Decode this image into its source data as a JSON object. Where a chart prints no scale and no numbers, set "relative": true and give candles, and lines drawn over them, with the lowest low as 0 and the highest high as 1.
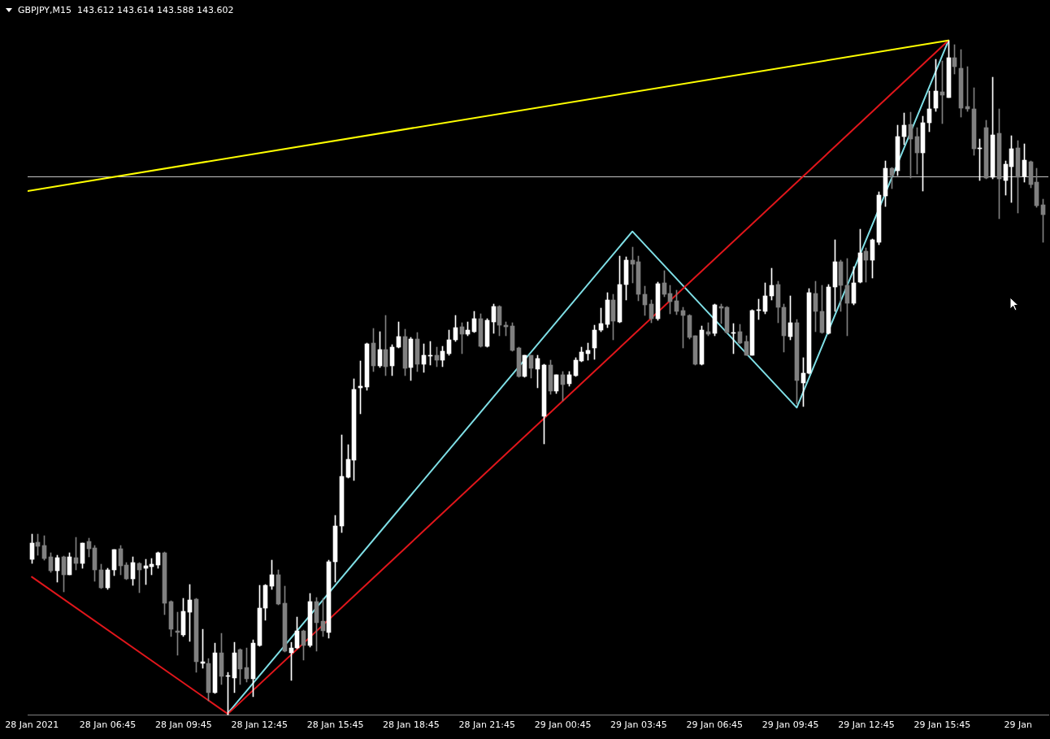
{
  "chart_data": {
    "type": "candlestick",
    "title": "GBPJPY,M15  143.612 143.614 143.588 143.602",
    "relative": true,
    "xlim": [
      "2021-01-28T03:35",
      "2021-01-29T19:57"
    ],
    "xticks": [
      {
        "value": "2021-01-28T03:45",
        "label": "28 Jan 2021"
      },
      {
        "value": "2021-01-28T06:45",
        "label": "28 Jan 06:45"
      },
      {
        "value": "2021-01-28T09:45",
        "label": "28 Jan 09:45"
      },
      {
        "value": "2021-01-28T12:45",
        "label": "28 Jan 12:45"
      },
      {
        "value": "2021-01-28T15:45",
        "label": "28 Jan 15:45"
      },
      {
        "value": "2021-01-28T18:45",
        "label": "28 Jan 18:45"
      },
      {
        "value": "2021-01-28T21:45",
        "label": "28 Jan 21:45"
      },
      {
        "value": "2021-01-29T00:45",
        "label": "29 Jan 00:45"
      },
      {
        "value": "2021-01-29T03:45",
        "label": "29 Jan 03:45"
      },
      {
        "value": "2021-01-29T06:45",
        "label": "29 Jan 06:45"
      },
      {
        "value": "2021-01-29T09:45",
        "label": "29 Jan 09:45"
      },
      {
        "value": "2021-01-29T12:45",
        "label": "29 Jan 12:45"
      },
      {
        "value": "2021-01-29T15:45",
        "label": "29 Jan 15:45"
      },
      {
        "value": "2021-01-29T18:45",
        "label": "29 Jan"
      }
    ],
    "x": [
      "2021-01-28T03:45",
      "2021-01-28T04:00",
      "2021-01-28T04:15",
      "2021-01-28T04:30",
      "2021-01-28T04:45",
      "2021-01-28T05:00",
      "2021-01-28T05:15",
      "2021-01-28T05:30",
      "2021-01-28T05:45",
      "2021-01-28T06:00",
      "2021-01-28T06:15",
      "2021-01-28T06:30",
      "2021-01-28T06:45",
      "2021-01-28T07:00",
      "2021-01-28T07:15",
      "2021-01-28T07:30",
      "2021-01-28T07:45",
      "2021-01-28T08:00",
      "2021-01-28T08:15",
      "2021-01-28T08:30",
      "2021-01-28T08:45",
      "2021-01-28T09:00",
      "2021-01-28T09:15",
      "2021-01-28T09:30",
      "2021-01-28T09:45",
      "2021-01-28T10:00",
      "2021-01-28T10:15",
      "2021-01-28T10:30",
      "2021-01-28T10:45",
      "2021-01-28T11:00",
      "2021-01-28T11:15",
      "2021-01-28T11:30",
      "2021-01-28T11:45",
      "2021-01-28T12:00",
      "2021-01-28T12:15",
      "2021-01-28T12:30",
      "2021-01-28T12:45",
      "2021-01-28T13:00",
      "2021-01-28T13:15",
      "2021-01-28T13:30",
      "2021-01-28T13:45",
      "2021-01-28T14:00",
      "2021-01-28T14:15",
      "2021-01-28T14:30",
      "2021-01-28T14:45",
      "2021-01-28T15:00",
      "2021-01-28T15:15",
      "2021-01-28T15:30",
      "2021-01-28T15:45",
      "2021-01-28T16:00",
      "2021-01-28T16:15",
      "2021-01-28T16:30",
      "2021-01-28T16:45",
      "2021-01-28T17:00",
      "2021-01-28T17:15",
      "2021-01-28T17:30",
      "2021-01-28T17:45",
      "2021-01-28T18:00",
      "2021-01-28T18:15",
      "2021-01-28T18:30",
      "2021-01-28T18:45",
      "2021-01-28T19:00",
      "2021-01-28T19:15",
      "2021-01-28T19:30",
      "2021-01-28T19:45",
      "2021-01-28T20:00",
      "2021-01-28T20:15",
      "2021-01-28T20:30",
      "2021-01-28T20:45",
      "2021-01-28T21:00",
      "2021-01-28T21:15",
      "2021-01-28T21:30",
      "2021-01-28T21:45",
      "2021-01-28T22:00",
      "2021-01-28T22:15",
      "2021-01-28T22:30",
      "2021-01-28T22:45",
      "2021-01-28T23:00",
      "2021-01-28T23:15",
      "2021-01-28T23:30",
      "2021-01-28T23:45",
      "2021-01-29T00:00",
      "2021-01-29T00:15",
      "2021-01-29T00:30",
      "2021-01-29T00:45",
      "2021-01-29T01:00",
      "2021-01-29T01:15",
      "2021-01-29T01:30",
      "2021-01-29T01:45",
      "2021-01-29T02:00",
      "2021-01-29T02:15",
      "2021-01-29T02:30",
      "2021-01-29T02:45",
      "2021-01-29T03:00",
      "2021-01-29T03:15",
      "2021-01-29T03:30",
      "2021-01-29T03:45",
      "2021-01-29T04:00",
      "2021-01-29T04:15",
      "2021-01-29T04:30",
      "2021-01-29T04:45",
      "2021-01-29T05:00",
      "2021-01-29T05:15",
      "2021-01-29T05:30",
      "2021-01-29T05:45",
      "2021-01-29T06:00",
      "2021-01-29T06:15",
      "2021-01-29T06:30",
      "2021-01-29T06:45",
      "2021-01-29T07:00",
      "2021-01-29T07:15",
      "2021-01-29T07:30",
      "2021-01-29T07:45",
      "2021-01-29T08:00",
      "2021-01-29T08:15",
      "2021-01-29T08:30",
      "2021-01-29T08:45",
      "2021-01-29T09:00",
      "2021-01-29T09:15",
      "2021-01-29T09:30",
      "2021-01-29T09:45",
      "2021-01-29T10:00",
      "2021-01-29T10:15",
      "2021-01-29T10:30",
      "2021-01-29T10:45",
      "2021-01-29T11:00",
      "2021-01-29T11:15",
      "2021-01-29T11:30",
      "2021-01-29T11:45",
      "2021-01-29T12:00",
      "2021-01-29T12:15",
      "2021-01-29T12:30",
      "2021-01-29T12:45",
      "2021-01-29T13:00",
      "2021-01-29T13:15",
      "2021-01-29T13:30",
      "2021-01-29T13:45",
      "2021-01-29T14:00",
      "2021-01-29T14:15",
      "2021-01-29T14:30",
      "2021-01-29T14:45",
      "2021-01-29T15:00",
      "2021-01-29T15:15",
      "2021-01-29T15:30",
      "2021-01-29T15:45",
      "2021-01-29T16:00",
      "2021-01-29T16:15",
      "2021-01-29T16:30",
      "2021-01-29T16:45",
      "2021-01-29T17:00",
      "2021-01-29T17:15",
      "2021-01-29T17:30",
      "2021-01-29T17:45",
      "2021-01-29T18:00",
      "2021-01-29T18:15",
      "2021-01-29T18:30",
      "2021-01-29T18:45",
      "2021-01-29T19:00",
      "2021-01-29T19:15",
      "2021-01-29T19:30",
      "2021-01-29T19:45"
    ],
    "ohlc": [
      [
        0.231,
        0.268,
        0.225,
        0.255
      ],
      [
        0.256,
        0.268,
        0.237,
        0.25
      ],
      [
        0.251,
        0.266,
        0.23,
        0.232
      ],
      [
        0.235,
        0.241,
        0.212,
        0.214
      ],
      [
        0.214,
        0.237,
        0.197,
        0.234
      ],
      [
        0.235,
        0.236,
        0.183,
        0.208
      ],
      [
        0.208,
        0.241,
        0.208,
        0.235
      ],
      [
        0.234,
        0.264,
        0.215,
        0.225
      ],
      [
        0.225,
        0.255,
        0.218,
        0.255
      ],
      [
        0.258,
        0.262,
        0.235,
        0.247
      ],
      [
        0.248,
        0.252,
        0.198,
        0.215
      ],
      [
        0.215,
        0.224,
        0.188,
        0.189
      ],
      [
        0.189,
        0.218,
        0.186,
        0.215
      ],
      [
        0.215,
        0.246,
        0.207,
        0.246
      ],
      [
        0.247,
        0.251,
        0.208,
        0.221
      ],
      [
        0.223,
        0.226,
        0.201,
        0.202
      ],
      [
        0.202,
        0.235,
        0.193,
        0.226
      ],
      [
        0.225,
        0.226,
        0.182,
        0.216
      ],
      [
        0.218,
        0.231,
        0.194,
        0.221
      ],
      [
        0.22,
        0.232,
        0.208,
        0.224
      ],
      [
        0.223,
        0.242,
        0.218,
        0.241
      ],
      [
        0.241,
        0.242,
        0.149,
        0.166
      ],
      [
        0.169,
        0.17,
        0.117,
        0.127
      ],
      [
        0.125,
        0.153,
        0.089,
        0.123
      ],
      [
        0.119,
        0.173,
        0.117,
        0.154
      ],
      [
        0.153,
        0.194,
        0.109,
        0.171
      ],
      [
        0.172,
        0.173,
        0.064,
        0.079
      ],
      [
        0.077,
        0.128,
        0.07,
        0.079
      ],
      [
        0.077,
        0.084,
        0.022,
        0.033
      ],
      [
        0.033,
        0.107,
        0.032,
        0.093
      ],
      [
        0.092,
        0.121,
        0.046,
        0.058
      ],
      [
        0.057,
        0.064,
        0,
        0.058
      ],
      [
        0.055,
        0.108,
        0.033,
        0.093
      ],
      [
        0.097,
        0.098,
        0.046,
        0.069
      ],
      [
        0.071,
        0.1,
        0.049,
        0.054
      ],
      [
        0.054,
        0.112,
        0.027,
        0.107
      ],
      [
        0.103,
        0.193,
        0.102,
        0.159
      ],
      [
        0.159,
        0.194,
        0.141,
        0.193
      ],
      [
        0.191,
        0.23,
        0.187,
        0.208
      ],
      [
        0.208,
        0.215,
        0.164,
        0.165
      ],
      [
        0.166,
        0.191,
        0.094,
        0.095
      ],
      [
        0.093,
        0.108,
        0.052,
        0.1
      ],
      [
        0.1,
        0.146,
        0.099,
        0.125
      ],
      [
        0.125,
        0.126,
        0.082,
        0.103
      ],
      [
        0.103,
        0.181,
        0.101,
        0.169
      ],
      [
        0.169,
        0.175,
        0.095,
        0.137
      ],
      [
        0.139,
        0.173,
        0.117,
        0.125
      ],
      [
        0.123,
        0.23,
        0.114,
        0.228
      ],
      [
        0.228,
        0.296,
        0.197,
        0.28
      ],
      [
        0.28,
        0.415,
        0.271,
        0.354
      ],
      [
        0.353,
        0.401,
        0.352,
        0.379
      ],
      [
        0.378,
        0.499,
        0.348,
        0.483
      ],
      [
        0.485,
        0.525,
        0.447,
        0.488
      ],
      [
        0.487,
        0.551,
        0.482,
        0.55
      ],
      [
        0.551,
        0.573,
        0.509,
        0.518
      ],
      [
        0.518,
        0.569,
        0.515,
        0.542
      ],
      [
        0.542,
        0.592,
        0.503,
        0.517
      ],
      [
        0.518,
        0.549,
        0.503,
        0.546
      ],
      [
        0.546,
        0.583,
        0.544,
        0.561
      ],
      [
        0.561,
        0.572,
        0.503,
        0.514
      ],
      [
        0.515,
        0.56,
        0.496,
        0.557
      ],
      [
        0.557,
        0.567,
        0.509,
        0.52
      ],
      [
        0.52,
        0.55,
        0.508,
        0.533
      ],
      [
        0.532,
        0.554,
        0.519,
        0.533
      ],
      [
        0.534,
        0.546,
        0.517,
        0.526
      ],
      [
        0.526,
        0.547,
        0.517,
        0.539
      ],
      [
        0.536,
        0.571,
        0.533,
        0.556
      ],
      [
        0.556,
        0.593,
        0.554,
        0.574
      ],
      [
        0.576,
        0.582,
        0.536,
        0.565
      ],
      [
        0.565,
        0.583,
        0.562,
        0.571
      ],
      [
        0.569,
        0.599,
        0.567,
        0.588
      ],
      [
        0.588,
        0.595,
        0.545,
        0.547
      ],
      [
        0.547,
        0.588,
        0.545,
        0.585
      ],
      [
        0.583,
        0.61,
        0.566,
        0.606
      ],
      [
        0.606,
        0.607,
        0.562,
        0.578
      ],
      [
        0.578,
        0.583,
        0.562,
        0.576
      ],
      [
        0.577,
        0.582,
        0.539,
        0.541
      ],
      [
        0.544,
        0.546,
        0.501,
        0.502
      ],
      [
        0.502,
        0.534,
        0.501,
        0.533
      ],
      [
        0.533,
        0.534,
        0.5,
        0.514
      ],
      [
        0.513,
        0.534,
        0.485,
        0.529
      ],
      [
        0.443,
        0.52,
        0.402,
        0.519
      ],
      [
        0.519,
        0.526,
        0.476,
        0.48
      ],
      [
        0.48,
        0.505,
        0.477,
        0.504
      ],
      [
        0.504,
        0.509,
        0.466,
        0.49
      ],
      [
        0.491,
        0.51,
        0.488,
        0.504
      ],
      [
        0.503,
        0.53,
        0.502,
        0.526
      ],
      [
        0.525,
        0.545,
        0.524,
        0.538
      ],
      [
        0.536,
        0.551,
        0.526,
        0.541
      ],
      [
        0.544,
        0.578,
        0.528,
        0.571
      ],
      [
        0.571,
        0.603,
        0.568,
        0.581
      ],
      [
        0.579,
        0.626,
        0.574,
        0.616
      ],
      [
        0.616,
        0.624,
        0.556,
        0.584
      ],
      [
        0.583,
        0.68,
        0.582,
        0.638
      ],
      [
        0.638,
        0.679,
        0.616,
        0.675
      ],
      [
        0.675,
        0.694,
        0.641,
        0.669
      ],
      [
        0.672,
        0.68,
        0.614,
        0.624
      ],
      [
        0.624,
        0.636,
        0.593,
        0.608
      ],
      [
        0.61,
        0.615,
        0.582,
        0.588
      ],
      [
        0.588,
        0.642,
        0.585,
        0.64
      ],
      [
        0.641,
        0.659,
        0.62,
        0.624
      ],
      [
        0.625,
        0.637,
        0.595,
        0.613
      ],
      [
        0.614,
        0.63,
        0.594,
        0.599
      ],
      [
        0.6,
        0.605,
        0.544,
        0.593
      ],
      [
        0.593,
        0.594,
        0.557,
        0.56
      ],
      [
        0.562,
        0.563,
        0.519,
        0.52
      ],
      [
        0.52,
        0.577,
        0.519,
        0.571
      ],
      [
        0.569,
        0.582,
        0.562,
        0.565
      ],
      [
        0.566,
        0.61,
        0.563,
        0.608
      ],
      [
        0.606,
        0.609,
        0.581,
        0.603
      ],
      [
        0.604,
        0.606,
        0.566,
        0.567
      ],
      [
        0.566,
        0.581,
        0.536,
        0.567
      ],
      [
        0.568,
        0.579,
        0.55,
        0.552
      ],
      [
        0.554,
        0.563,
        0.533,
        0.534
      ],
      [
        0.534,
        0.601,
        0.533,
        0.6
      ],
      [
        0.6,
        0.617,
        0.587,
        0.601
      ],
      [
        0.599,
        0.641,
        0.595,
        0.622
      ],
      [
        0.621,
        0.663,
        0.616,
        0.637
      ],
      [
        0.638,
        0.643,
        0.582,
        0.605
      ],
      [
        0.604,
        0.61,
        0.538,
        0.562
      ],
      [
        0.561,
        0.621,
        0.556,
        0.582
      ],
      [
        0.582,
        0.587,
        0.461,
        0.496
      ],
      [
        0.493,
        0.53,
        0.458,
        0.507
      ],
      [
        0.507,
        0.632,
        0.506,
        0.626
      ],
      [
        0.625,
        0.643,
        0.569,
        0.598
      ],
      [
        0.598,
        0.637,
        0.566,
        0.567
      ],
      [
        0.566,
        0.638,
        0.565,
        0.635
      ],
      [
        0.635,
        0.704,
        0.599,
        0.672
      ],
      [
        0.672,
        0.674,
        0.599,
        0.637
      ],
      [
        0.637,
        0.677,
        0.562,
        0.611
      ],
      [
        0.611,
        0.665,
        0.608,
        0.641
      ],
      [
        0.642,
        0.72,
        0.641,
        0.685
      ],
      [
        0.688,
        0.692,
        0.642,
        0.674
      ],
      [
        0.674,
        0.706,
        0.648,
        0.704
      ],
      [
        0.701,
        0.776,
        0.697,
        0.771
      ],
      [
        0.77,
        0.822,
        0.754,
        0.811
      ],
      [
        0.811,
        0.812,
        0.781,
        0.8
      ],
      [
        0.807,
        0.875,
        0.8,
        0.857
      ],
      [
        0.857,
        0.893,
        0.845,
        0.875
      ],
      [
        0.876,
        0.894,
        0.796,
        0.854
      ],
      [
        0.857,
        0.871,
        0.802,
        0.834
      ],
      [
        0.834,
        0.888,
        0.777,
        0.878
      ],
      [
        0.878,
        0.925,
        0.865,
        0.898
      ],
      [
        0.9,
        0.972,
        0.895,
        0.925
      ],
      [
        0.924,
        0.97,
        0.877,
        0.919
      ],
      [
        0.916,
        1,
        0.915,
        0.974
      ],
      [
        0.974,
        0.994,
        0.95,
        0.961
      ],
      [
        0.959,
        0.986,
        0.886,
        0.9
      ],
      [
        0.902,
        0.961,
        0.895,
        0.898
      ],
      [
        0.898,
        0.93,
        0.83,
        0.84
      ],
      [
        0.839,
        0.854,
        0.793,
        0.84
      ],
      [
        0.871,
        0.882,
        0.795,
        0.796
      ],
      [
        0.797,
        0.946,
        0.795,
        0.86
      ],
      [
        0.862,
        0.899,
        0.736,
        0.795
      ],
      [
        0.792,
        0.822,
        0.771,
        0.817
      ],
      [
        0.813,
        0.859,
        0.76,
        0.84
      ],
      [
        0.841,
        0.851,
        0.744,
        0.797
      ],
      [
        0.798,
        0.847,
        0.79,
        0.823
      ],
      [
        0.82,
        0.822,
        0.782,
        0.786
      ],
      [
        0.79,
        0.811,
        0.753,
        0.755
      ],
      [
        0.756,
        0.765,
        0.701,
        0.742
      ]
    ],
    "colors": [
      "#ffffff",
      "#808080",
      "#808080",
      "#808080",
      "#ffffff",
      "#808080",
      "#ffffff",
      "#808080",
      "#ffffff",
      "#808080",
      "#808080",
      "#808080",
      "#ffffff",
      "#ffffff",
      "#808080",
      "#808080",
      "#ffffff",
      "#808080",
      "#ffffff",
      "#ffffff",
      "#ffffff",
      "#808080",
      "#808080",
      "#808080",
      "#ffffff",
      "#ffffff",
      "#808080",
      "#ffffff",
      "#808080",
      "#ffffff",
      "#808080",
      "#ffffff",
      "#ffffff",
      "#808080",
      "#808080",
      "#ffffff",
      "#ffffff",
      "#ffffff",
      "#ffffff",
      "#808080",
      "#808080",
      "#ffffff",
      "#ffffff",
      "#808080",
      "#ffffff",
      "#808080",
      "#808080",
      "#ffffff",
      "#ffffff",
      "#ffffff",
      "#ffffff",
      "#ffffff",
      "#ffffff",
      "#ffffff",
      "#808080",
      "#ffffff",
      "#808080",
      "#ffffff",
      "#ffffff",
      "#808080",
      "#ffffff",
      "#808080",
      "#ffffff",
      "#ffffff",
      "#808080",
      "#ffffff",
      "#ffffff",
      "#ffffff",
      "#808080",
      "#ffffff",
      "#ffffff",
      "#808080",
      "#ffffff",
      "#ffffff",
      "#808080",
      "#808080",
      "#808080",
      "#808080",
      "#ffffff",
      "#808080",
      "#ffffff",
      "#ffffff",
      "#808080",
      "#ffffff",
      "#808080",
      "#ffffff",
      "#ffffff",
      "#ffffff",
      "#ffffff",
      "#ffffff",
      "#ffffff",
      "#ffffff",
      "#808080",
      "#ffffff",
      "#ffffff",
      "#808080",
      "#808080",
      "#808080",
      "#808080",
      "#ffffff",
      "#808080",
      "#808080",
      "#808080",
      "#808080",
      "#808080",
      "#808080",
      "#ffffff",
      "#808080",
      "#ffffff",
      "#808080",
      "#808080",
      "#ffffff",
      "#808080",
      "#808080",
      "#ffffff",
      "#ffffff",
      "#ffffff",
      "#ffffff",
      "#808080",
      "#808080",
      "#ffffff",
      "#808080",
      "#ffffff",
      "#ffffff",
      "#808080",
      "#808080",
      "#ffffff",
      "#ffffff",
      "#808080",
      "#808080",
      "#ffffff",
      "#ffffff",
      "#808080",
      "#ffffff",
      "#ffffff",
      "#ffffff",
      "#808080",
      "#ffffff",
      "#ffffff",
      "#808080",
      "#808080",
      "#ffffff",
      "#ffffff",
      "#ffffff",
      "#808080",
      "#ffffff",
      "#808080",
      "#808080",
      "#808080",
      "#808080",
      "#ffffff",
      "#808080",
      "#ffffff",
      "#808080",
      "#ffffff",
      "#ffffff",
      "#808080",
      "#ffffff",
      "#808080",
      "#808080",
      "#808080"
    ],
    "series": [
      {
        "type": "line",
        "color": "#ffff00",
        "x": [
          "2021-01-28T03:35",
          "2021-01-29T16:00"
        ],
        "values": [
          0.777,
          1
        ]
      },
      {
        "type": "line",
        "color": "#e0161b",
        "x": [
          "2021-01-28T03:45",
          "2021-01-28T11:30",
          "2021-01-29T16:00"
        ],
        "values": [
          0.205,
          0.002,
          1
        ]
      },
      {
        "type": "line",
        "color": "#7fdfe6",
        "x": [
          "2021-01-28T11:30",
          "2021-01-29T03:30",
          "2021-01-29T10:00",
          "2021-01-29T16:00"
        ],
        "values": [
          0.003,
          0.717,
          0.456,
          1
        ]
      }
    ],
    "ref_lines": [
      {
        "axis": "y",
        "value": 0.798,
        "color": "#c8c8c8"
      }
    ]
  }
}
